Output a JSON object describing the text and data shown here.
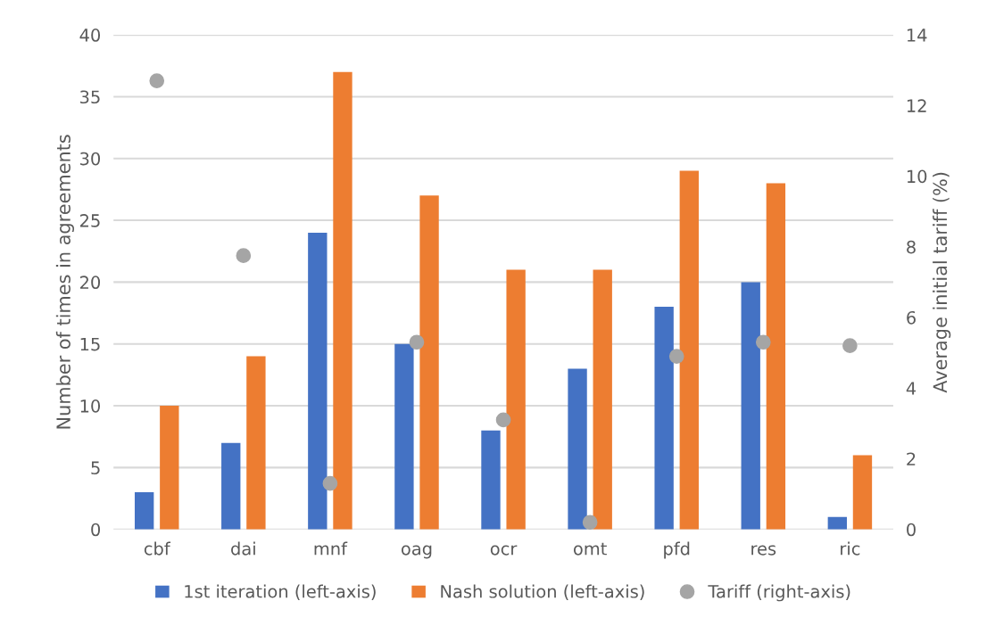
{
  "chart_data": {
    "type": "bar",
    "categories": [
      "cbf",
      "dai",
      "mnf",
      "oag",
      "ocr",
      "omt",
      "pfd",
      "res",
      "ric"
    ],
    "ylabel": "Number of times in agreements",
    "y2label": "Average initial tariff (%)",
    "ylim": [
      0,
      40
    ],
    "yticks": [
      0,
      5,
      10,
      15,
      20,
      25,
      30,
      35,
      40
    ],
    "y2lim": [
      0,
      14
    ],
    "y2ticks": [
      0,
      2,
      4,
      6,
      8,
      10,
      12,
      14
    ],
    "grid": "y",
    "legend": "bottom",
    "series": [
      {
        "name": "1st iteration (left-axis)",
        "color": "#4472c4",
        "values": [
          3,
          7,
          24,
          15,
          8,
          13,
          18,
          20,
          1
        ]
      },
      {
        "name": "Nash solution (left-axis)",
        "color": "#ed7d31",
        "values": [
          10,
          14,
          37,
          27,
          21,
          21,
          29,
          28,
          6
        ]
      },
      {
        "name": "Tariff (right-axis)",
        "type": "scatter",
        "axis": "y2",
        "marker": "circle",
        "color": "#a5a5a5",
        "values": [
          12.7,
          7.75,
          1.3,
          5.3,
          3.1,
          0.2,
          4.9,
          5.3,
          5.2
        ]
      }
    ]
  }
}
